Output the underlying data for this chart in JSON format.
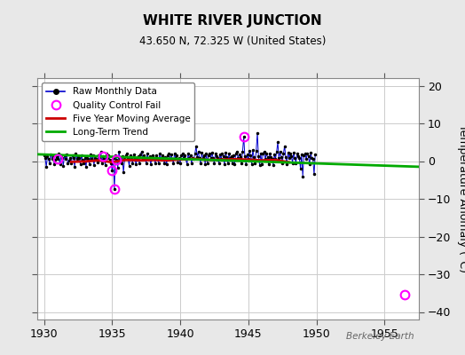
{
  "title": "WHITE RIVER JUNCTION",
  "subtitle": "43.650 N, 72.325 W (United States)",
  "ylabel": "Temperature Anomaly (°C)",
  "watermark": "Berkeley Earth",
  "xlim": [
    1929.5,
    1957.5
  ],
  "ylim": [
    -42,
    22
  ],
  "yticks": [
    -40,
    -30,
    -20,
    -10,
    0,
    10,
    20
  ],
  "xticks": [
    1930,
    1935,
    1940,
    1945,
    1950,
    1955
  ],
  "fig_bg_color": "#e8e8e8",
  "plot_bg_color": "#ffffff",
  "raw_color": "#0000cc",
  "dot_color": "#000000",
  "ma_color": "#cc0000",
  "trend_color": "#00aa00",
  "qc_color": "#ff00ff",
  "raw_monthly_x": [
    1930.0,
    1930.083,
    1930.167,
    1930.25,
    1930.333,
    1930.417,
    1930.5,
    1930.583,
    1930.667,
    1930.75,
    1930.833,
    1930.917,
    1931.0,
    1931.083,
    1931.167,
    1931.25,
    1931.333,
    1931.417,
    1931.5,
    1931.583,
    1931.667,
    1931.75,
    1931.833,
    1931.917,
    1932.0,
    1932.083,
    1932.167,
    1932.25,
    1932.333,
    1932.417,
    1932.5,
    1932.583,
    1932.667,
    1932.75,
    1932.833,
    1932.917,
    1933.0,
    1933.083,
    1933.167,
    1933.25,
    1933.333,
    1933.417,
    1933.5,
    1933.583,
    1933.667,
    1933.75,
    1933.833,
    1933.917,
    1934.0,
    1934.083,
    1934.167,
    1934.25,
    1934.333,
    1934.417,
    1934.5,
    1934.583,
    1934.667,
    1934.75,
    1934.833,
    1934.917,
    1935.0,
    1935.083,
    1935.167,
    1935.25,
    1935.333,
    1935.417,
    1935.5,
    1935.583,
    1935.667,
    1935.75,
    1935.833,
    1935.917,
    1936.0,
    1936.083,
    1936.167,
    1936.25,
    1936.333,
    1936.417,
    1936.5,
    1936.583,
    1936.667,
    1936.75,
    1936.833,
    1936.917,
    1937.0,
    1937.083,
    1937.167,
    1937.25,
    1937.333,
    1937.417,
    1937.5,
    1937.583,
    1937.667,
    1937.75,
    1937.833,
    1937.917,
    1938.0,
    1938.083,
    1938.167,
    1938.25,
    1938.333,
    1938.417,
    1938.5,
    1938.583,
    1938.667,
    1938.75,
    1938.833,
    1938.917,
    1939.0,
    1939.083,
    1939.167,
    1939.25,
    1939.333,
    1939.417,
    1939.5,
    1939.583,
    1939.667,
    1939.75,
    1939.833,
    1939.917,
    1940.0,
    1940.083,
    1940.167,
    1940.25,
    1940.333,
    1940.417,
    1940.5,
    1940.583,
    1940.667,
    1940.75,
    1940.833,
    1940.917,
    1941.0,
    1941.083,
    1941.167,
    1941.25,
    1941.333,
    1941.417,
    1941.5,
    1941.583,
    1941.667,
    1941.75,
    1941.833,
    1941.917,
    1942.0,
    1942.083,
    1942.167,
    1942.25,
    1942.333,
    1942.417,
    1942.5,
    1942.583,
    1942.667,
    1942.75,
    1942.833,
    1942.917,
    1943.0,
    1943.083,
    1943.167,
    1943.25,
    1943.333,
    1943.417,
    1943.5,
    1943.583,
    1943.667,
    1943.75,
    1943.833,
    1943.917,
    1944.0,
    1944.083,
    1944.167,
    1944.25,
    1944.333,
    1944.417,
    1944.5,
    1944.583,
    1944.667,
    1944.75,
    1944.833,
    1944.917,
    1945.0,
    1945.083,
    1945.167,
    1945.25,
    1945.333,
    1945.417,
    1945.5,
    1945.583,
    1945.667,
    1945.75,
    1945.833,
    1945.917,
    1946.0,
    1946.083,
    1946.167,
    1946.25,
    1946.333,
    1946.417,
    1946.5,
    1946.583,
    1946.667,
    1946.75,
    1946.833,
    1946.917,
    1947.0,
    1947.083,
    1947.167,
    1947.25,
    1947.333,
    1947.417,
    1947.5,
    1947.583,
    1947.667,
    1947.75,
    1947.833,
    1947.917,
    1948.0,
    1948.083,
    1948.167,
    1948.25,
    1948.333,
    1948.417,
    1948.5,
    1948.583,
    1948.667,
    1948.75,
    1948.833,
    1948.917,
    1949.0,
    1949.083,
    1949.167,
    1949.25,
    1949.333,
    1949.417,
    1949.5,
    1949.583,
    1949.667,
    1949.75,
    1949.833,
    1949.917
  ],
  "raw_monthly_y": [
    1.5,
    0.8,
    -1.5,
    1.2,
    0.5,
    -0.5,
    1.8,
    0.5,
    1.2,
    -0.8,
    0.3,
    1.0,
    0.5,
    2.0,
    -0.8,
    1.5,
    0.8,
    -1.2,
    1.5,
    0.5,
    1.8,
    -0.5,
    0.2,
    0.8,
    -0.5,
    1.5,
    0.8,
    -1.5,
    2.0,
    0.5,
    1.2,
    0.8,
    -0.8,
    1.5,
    0.3,
    -0.5,
    0.8,
    -1.5,
    1.2,
    0.5,
    -0.8,
    1.8,
    0.5,
    1.5,
    -1.0,
    0.8,
    0.5,
    -0.3,
    1.5,
    0.8,
    2.5,
    -0.5,
    1.2,
    0.5,
    -1.0,
    2.0,
    0.8,
    1.5,
    0.3,
    -0.5,
    -2.5,
    0.8,
    -7.5,
    1.5,
    0.3,
    -1.8,
    2.5,
    0.8,
    -0.5,
    1.2,
    -3.0,
    0.5,
    1.5,
    2.0,
    0.8,
    -1.2,
    1.5,
    0.5,
    -0.5,
    1.8,
    0.8,
    -0.8,
    0.5,
    1.2,
    -0.5,
    1.8,
    2.5,
    0.5,
    1.5,
    0.8,
    -0.5,
    2.0,
    0.5,
    1.2,
    -0.8,
    0.5,
    1.5,
    0.8,
    -0.5,
    1.5,
    0.8,
    -0.5,
    2.0,
    0.5,
    1.5,
    0.8,
    -0.5,
    1.0,
    -0.8,
    1.5,
    2.0,
    0.5,
    1.8,
    0.5,
    -0.5,
    2.0,
    0.8,
    1.5,
    -0.3,
    0.8,
    -0.5,
    1.5,
    2.0,
    0.8,
    1.5,
    0.5,
    -0.8,
    2.0,
    0.8,
    1.5,
    -0.5,
    0.8,
    0.5,
    2.0,
    4.0,
    1.0,
    2.5,
    0.8,
    -0.5,
    2.2,
    0.8,
    1.5,
    -0.8,
    2.0,
    -0.5,
    1.5,
    2.0,
    0.8,
    2.2,
    0.8,
    -0.5,
    2.0,
    1.2,
    0.8,
    -0.5,
    1.8,
    0.5,
    2.0,
    1.2,
    -0.8,
    2.2,
    1.0,
    -0.5,
    2.0,
    0.8,
    1.2,
    -0.5,
    1.5,
    -0.8,
    2.0,
    2.5,
    0.8,
    1.8,
    1.0,
    -0.5,
    2.5,
    6.5,
    1.2,
    -0.8,
    1.8,
    0.5,
    2.8,
    1.5,
    -0.8,
    3.0,
    1.0,
    -0.5,
    2.8,
    7.5,
    1.2,
    -1.0,
    2.0,
    -0.8,
    2.0,
    2.5,
    0.5,
    2.0,
    1.0,
    -0.8,
    2.0,
    1.0,
    0.5,
    -1.0,
    1.8,
    0.5,
    2.5,
    5.0,
    0.8,
    2.5,
    1.0,
    -0.5,
    2.0,
    4.0,
    1.0,
    -0.8,
    2.2,
    0.8,
    2.0,
    1.2,
    -0.5,
    2.2,
    0.8,
    -0.5,
    2.0,
    1.2,
    0.8,
    -2.0,
    1.8,
    -4.0,
    1.5,
    2.0,
    0.5,
    2.0,
    1.2,
    -0.8,
    2.2,
    0.8,
    0.5,
    -3.5,
    1.8
  ],
  "ma_x": [
    1932.0,
    1933.0,
    1934.0,
    1935.0,
    1936.0,
    1937.0,
    1938.0,
    1939.0,
    1940.0,
    1941.0,
    1942.0,
    1943.0,
    1944.0,
    1945.0,
    1946.0,
    1947.0,
    1948.0
  ],
  "ma_y": [
    -0.2,
    -0.1,
    0.2,
    -0.3,
    0.3,
    0.2,
    0.3,
    0.2,
    0.4,
    0.6,
    0.3,
    0.4,
    0.5,
    0.4,
    0.2,
    0.3,
    -0.3
  ],
  "trend_x": [
    1929.5,
    1957.5
  ],
  "trend_y": [
    1.8,
    -1.5
  ],
  "qc_fail_x": [
    1931.0,
    1934.333,
    1935.0,
    1935.167,
    1935.333,
    1944.667,
    1956.5
  ],
  "qc_fail_y": [
    0.5,
    1.2,
    -2.5,
    -7.5,
    0.3,
    6.5,
    -35.5
  ]
}
